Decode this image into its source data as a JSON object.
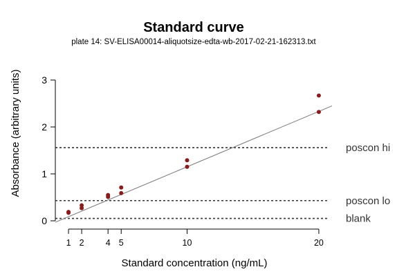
{
  "chart_data": {
    "type": "scatter",
    "title": "Standard curve",
    "subtitle": "plate 14: SV-ELISA00014-aliquotsize-edta-wb-2017-02-21-162313.txt",
    "xlabel": "Standard concentration (ng/mL)",
    "ylabel": "Absorbance (arbitrary units)",
    "xlim": [
      0,
      21
    ],
    "ylim": [
      0,
      3.5
    ],
    "xticks": [
      "1",
      "2",
      "4",
      "5",
      "10",
      "20"
    ],
    "yticks": [
      "0",
      "1",
      "2",
      "3"
    ],
    "grid": false,
    "point_color": "#8b1a1a",
    "points": [
      {
        "x": 1,
        "y": 0.17
      },
      {
        "x": 1,
        "y": 0.19
      },
      {
        "x": 2,
        "y": 0.27
      },
      {
        "x": 2,
        "y": 0.33
      },
      {
        "x": 4,
        "y": 0.51
      },
      {
        "x": 4,
        "y": 0.55
      },
      {
        "x": 5,
        "y": 0.59
      },
      {
        "x": 5,
        "y": 0.71
      },
      {
        "x": 10,
        "y": 1.15
      },
      {
        "x": 10,
        "y": 1.29
      },
      {
        "x": 20,
        "y": 2.32
      },
      {
        "x": 20,
        "y": 2.67
      }
    ],
    "fit_line": {
      "x": [
        0,
        21
      ],
      "y": [
        -0.03,
        2.45
      ],
      "color": "#777777"
    },
    "reference_lines": [
      {
        "label": "poscon hi",
        "y": 1.56
      },
      {
        "label": "poscon lo",
        "y": 0.43
      },
      {
        "label": "blank",
        "y": 0.05
      }
    ]
  }
}
